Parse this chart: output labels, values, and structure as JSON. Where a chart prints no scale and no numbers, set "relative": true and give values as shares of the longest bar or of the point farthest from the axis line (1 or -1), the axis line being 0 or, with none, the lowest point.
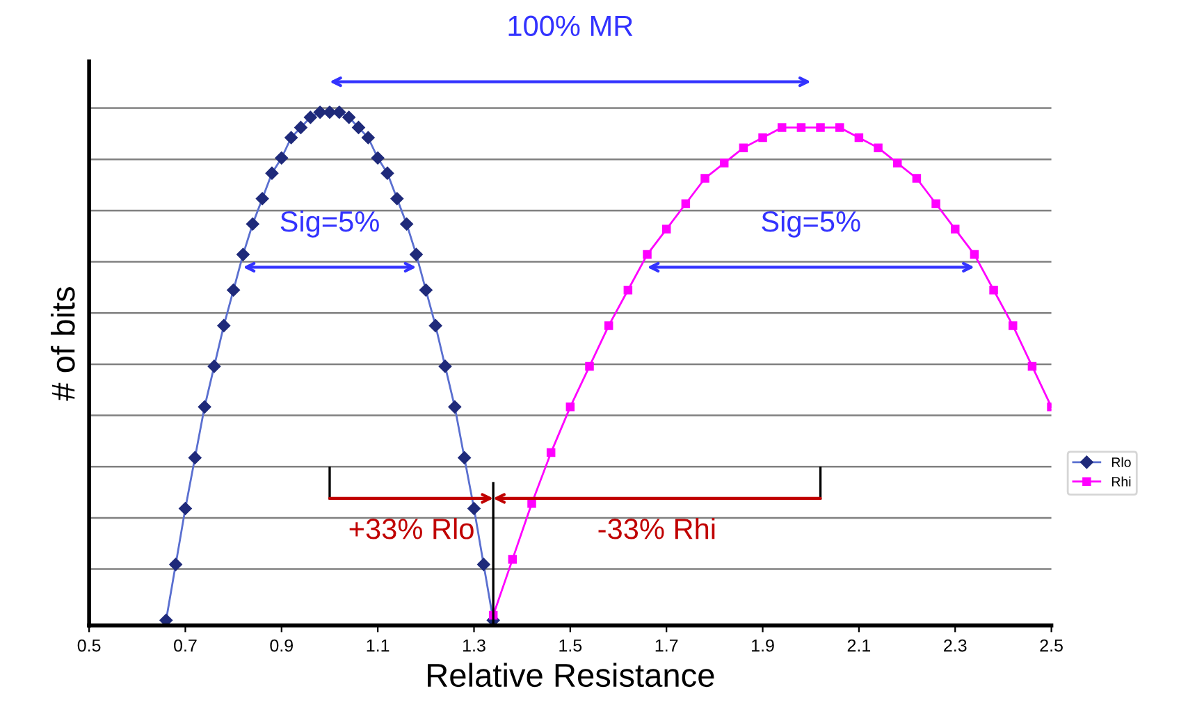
{
  "chart_data": {
    "type": "line",
    "xlabel": "Relative Resistance",
    "ylabel": "# of bits",
    "relative": true,
    "xlim": [
      0.5,
      2.5
    ],
    "xticks": [
      0.5,
      0.7,
      0.9,
      1.1,
      1.3,
      1.5,
      1.7,
      1.9,
      2.1,
      2.3,
      2.5
    ],
    "grid": "y",
    "legend": "right",
    "line_style": "solid",
    "series": [
      {
        "name": "Rlo",
        "color": "#1f2a7a",
        "marker": "diamond",
        "x": [
          0.66,
          0.68,
          0.7,
          0.72,
          0.74,
          0.76,
          0.78,
          0.8,
          0.82,
          0.84,
          0.86,
          0.88,
          0.9,
          0.92,
          0.94,
          0.96,
          0.98,
          1.0,
          1.02,
          1.04,
          1.06,
          1.08,
          1.1,
          1.12,
          1.14,
          1.16,
          1.18,
          1.2,
          1.22,
          1.24,
          1.26,
          1.28,
          1.3,
          1.32,
          1.34
        ],
        "values": [
          0,
          0.11,
          0.22,
          0.32,
          0.42,
          0.5,
          0.58,
          0.65,
          0.72,
          0.78,
          0.83,
          0.88,
          0.91,
          0.95,
          0.97,
          0.99,
          1.0,
          1.0,
          1.0,
          0.99,
          0.97,
          0.95,
          0.91,
          0.88,
          0.83,
          0.78,
          0.72,
          0.65,
          0.58,
          0.5,
          0.42,
          0.32,
          0.22,
          0.11,
          0
        ]
      },
      {
        "name": "Rhi",
        "color": "#ff00ff",
        "marker": "square",
        "x": [
          1.34,
          1.38,
          1.42,
          1.46,
          1.5,
          1.54,
          1.58,
          1.62,
          1.66,
          1.7,
          1.74,
          1.78,
          1.82,
          1.86,
          1.9,
          1.94,
          1.98,
          2.02,
          2.06,
          2.1,
          2.14,
          2.18,
          2.22,
          2.26,
          2.3,
          2.34,
          2.38,
          2.42,
          2.46,
          2.5
        ],
        "values": [
          0.01,
          0.12,
          0.23,
          0.33,
          0.42,
          0.5,
          0.58,
          0.65,
          0.72,
          0.77,
          0.82,
          0.87,
          0.9,
          0.93,
          0.95,
          0.97,
          0.97,
          0.97,
          0.97,
          0.95,
          0.93,
          0.9,
          0.87,
          0.82,
          0.77,
          0.72,
          0.65,
          0.58,
          0.5,
          0.42
        ]
      }
    ],
    "annotations": [
      "100% MR",
      "Sig=5%",
      "Sig=5%",
      "+33% Rlo",
      "-33% Rhi"
    ]
  }
}
